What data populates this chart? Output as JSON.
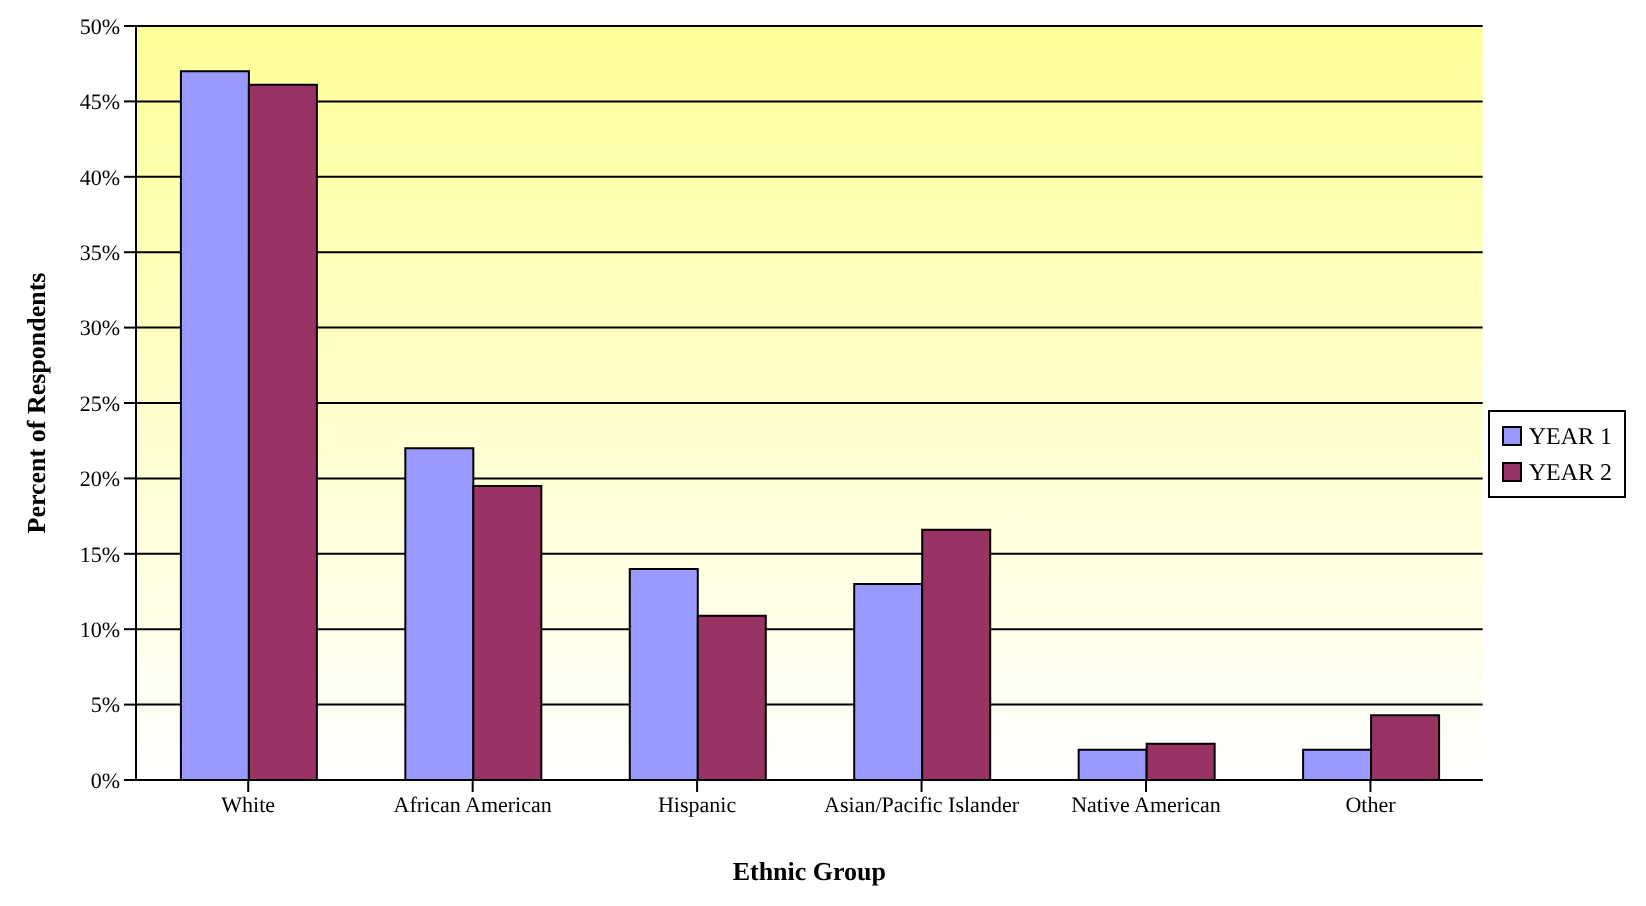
{
  "chart_data": {
    "type": "bar",
    "xlabel": "Ethnic Group",
    "ylabel": "Percent of Respondents",
    "categories": [
      "White",
      "African American",
      "Hispanic",
      "Asian/Pacific Islander",
      "Native American",
      "Other"
    ],
    "series": [
      {
        "name": "YEAR 1",
        "color": "#9999ff",
        "values": [
          47,
          22,
          14,
          13,
          2,
          2
        ]
      },
      {
        "name": "YEAR 2",
        "color": "#993366",
        "values": [
          46.1,
          19.5,
          10.9,
          16.6,
          2.4,
          4.3
        ]
      }
    ],
    "ylim": [
      0,
      50
    ],
    "yticks": [
      {
        "value": 0,
        "label": "0%"
      },
      {
        "value": 5,
        "label": "5%"
      },
      {
        "value": 10,
        "label": "10%"
      },
      {
        "value": 15,
        "label": "15%"
      },
      {
        "value": 20,
        "label": "20%"
      },
      {
        "value": 25,
        "label": "25%"
      },
      {
        "value": 30,
        "label": "30%"
      },
      {
        "value": 35,
        "label": "35%"
      },
      {
        "value": 40,
        "label": "40%"
      },
      {
        "value": 45,
        "label": "45%"
      },
      {
        "value": 50,
        "label": "50%"
      }
    ],
    "grid": "y",
    "legend": "right"
  }
}
